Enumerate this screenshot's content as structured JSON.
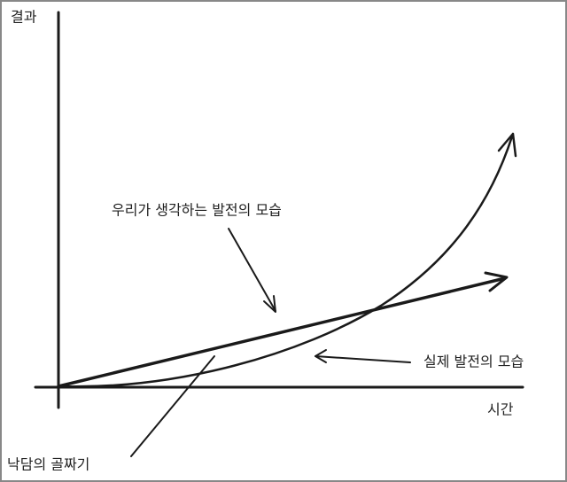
{
  "y_axis_label": "결과",
  "x_axis_label": "시간",
  "annotations": {
    "expected": "우리가 생각하는 발전의 모습",
    "actual": "실제 발전의 모습",
    "valley": "낙담의 골짜기"
  }
}
